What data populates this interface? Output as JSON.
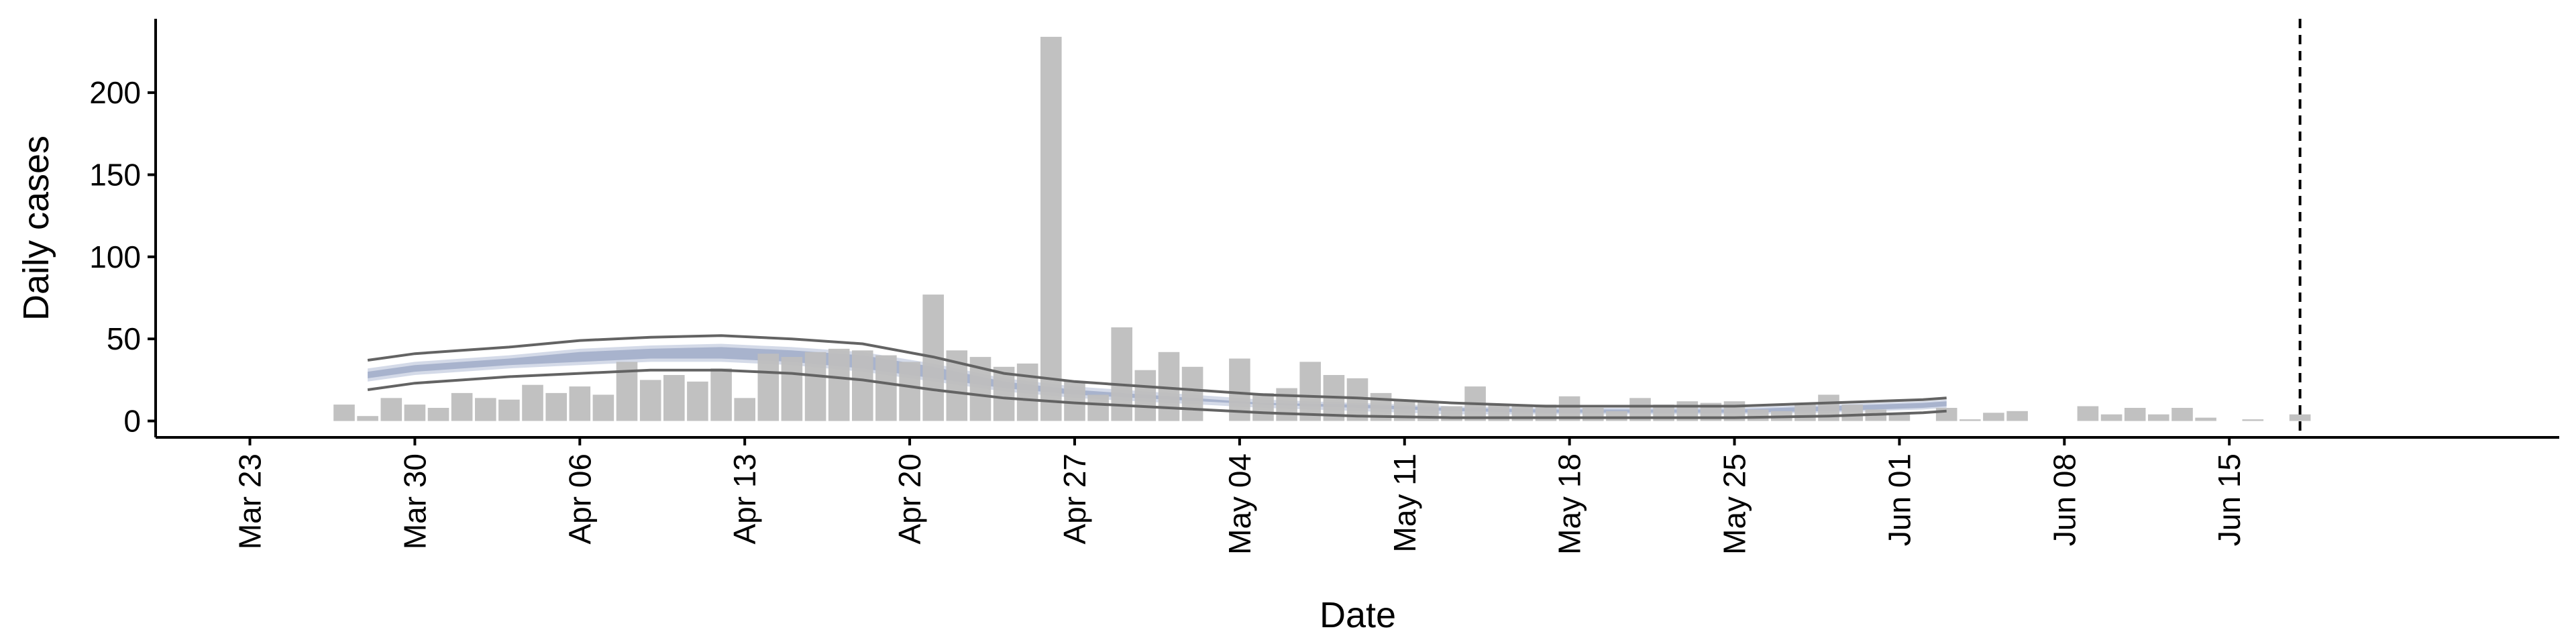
{
  "chart_data": {
    "type": "bar",
    "title": "",
    "xlabel": "Date",
    "ylabel": "Daily cases",
    "x_start": "2020-03-23",
    "x_range": [
      "2020-03-19",
      "2020-06-29"
    ],
    "ylim": [
      -10,
      245
    ],
    "yticks": [
      0,
      50,
      100,
      150,
      200
    ],
    "xticks": [
      {
        "date": "2020-03-23",
        "label": "Mar 23"
      },
      {
        "date": "2020-03-30",
        "label": "Mar 30"
      },
      {
        "date": "2020-04-06",
        "label": "Apr 06"
      },
      {
        "date": "2020-04-13",
        "label": "Apr 13"
      },
      {
        "date": "2020-04-20",
        "label": "Apr 20"
      },
      {
        "date": "2020-04-27",
        "label": "Apr 27"
      },
      {
        "date": "2020-05-04",
        "label": "May 04"
      },
      {
        "date": "2020-05-11",
        "label": "May 11"
      },
      {
        "date": "2020-05-18",
        "label": "May 18"
      },
      {
        "date": "2020-05-25",
        "label": "May 25"
      },
      {
        "date": "2020-06-01",
        "label": "Jun 01"
      },
      {
        "date": "2020-06-08",
        "label": "Jun 08"
      },
      {
        "date": "2020-06-15",
        "label": "Jun 15"
      }
    ],
    "bars": {
      "dates": [
        "2020-03-27",
        "2020-03-28",
        "2020-03-29",
        "2020-03-30",
        "2020-03-31",
        "2020-04-01",
        "2020-04-02",
        "2020-04-03",
        "2020-04-04",
        "2020-04-05",
        "2020-04-06",
        "2020-04-07",
        "2020-04-08",
        "2020-04-09",
        "2020-04-10",
        "2020-04-11",
        "2020-04-12",
        "2020-04-13",
        "2020-04-14",
        "2020-04-15",
        "2020-04-16",
        "2020-04-17",
        "2020-04-18",
        "2020-04-19",
        "2020-04-20",
        "2020-04-21",
        "2020-04-22",
        "2020-04-23",
        "2020-04-24",
        "2020-04-25",
        "2020-04-26",
        "2020-04-27",
        "2020-04-28",
        "2020-04-29",
        "2020-04-30",
        "2020-05-01",
        "2020-05-02",
        "2020-05-03",
        "2020-05-04",
        "2020-05-05",
        "2020-05-06",
        "2020-05-07",
        "2020-05-08",
        "2020-05-09",
        "2020-05-10",
        "2020-05-11",
        "2020-05-12",
        "2020-05-13",
        "2020-05-14",
        "2020-05-15",
        "2020-05-16",
        "2020-05-17",
        "2020-05-18",
        "2020-05-19",
        "2020-05-20",
        "2020-05-21",
        "2020-05-22",
        "2020-05-23",
        "2020-05-24",
        "2020-05-25",
        "2020-05-26",
        "2020-05-27",
        "2020-05-28",
        "2020-05-29",
        "2020-05-30",
        "2020-05-31",
        "2020-06-01",
        "2020-06-02",
        "2020-06-03",
        "2020-06-04",
        "2020-06-05",
        "2020-06-06",
        "2020-06-07",
        "2020-06-08",
        "2020-06-09",
        "2020-06-10",
        "2020-06-11",
        "2020-06-12",
        "2020-06-13",
        "2020-06-14",
        "2020-06-15",
        "2020-06-16",
        "2020-06-17",
        "2020-06-18"
      ],
      "values": [
        10,
        3,
        14,
        10,
        8,
        17,
        14,
        13,
        22,
        17,
        21,
        16,
        36,
        25,
        28,
        24,
        32,
        14,
        41,
        39,
        42,
        44,
        43,
        40,
        36,
        77,
        43,
        39,
        33,
        35,
        234,
        24,
        16,
        57,
        31,
        42,
        33,
        0,
        38,
        17,
        20,
        36,
        28,
        26,
        17,
        13,
        12,
        9,
        21,
        10,
        9,
        10,
        15,
        8,
        6,
        14,
        10,
        12,
        11,
        12,
        7,
        6,
        10,
        16,
        10,
        7,
        5,
        0,
        8,
        1,
        5,
        6,
        0,
        0,
        9,
        4,
        8,
        4,
        8,
        2,
        0,
        1,
        0,
        4
      ],
      "color": "#bebebe"
    },
    "model_lines": {
      "dates": [
        "2020-03-28",
        "2020-03-30",
        "2020-04-01",
        "2020-04-03",
        "2020-04-06",
        "2020-04-09",
        "2020-04-12",
        "2020-04-15",
        "2020-04-18",
        "2020-04-21",
        "2020-04-24",
        "2020-04-27",
        "2020-05-01",
        "2020-05-05",
        "2020-05-09",
        "2020-05-13",
        "2020-05-17",
        "2020-05-21",
        "2020-05-25",
        "2020-05-29",
        "2020-06-02",
        "2020-06-03"
      ],
      "upper": [
        37,
        41,
        43,
        45,
        49,
        51,
        52,
        50,
        47,
        39,
        29,
        24,
        20,
        16,
        14,
        11,
        9,
        9,
        9,
        11,
        13,
        14
      ],
      "lower": [
        19,
        23,
        25,
        27,
        29,
        31,
        31,
        29,
        25,
        19,
        14,
        11,
        8,
        5,
        3,
        2,
        2,
        2,
        2,
        3,
        5,
        6
      ],
      "band_outer_upper": [
        32,
        36,
        38,
        40,
        44,
        46,
        47,
        45,
        42,
        35,
        26,
        21,
        17,
        13,
        11,
        9,
        8,
        8,
        8,
        10,
        12,
        13
      ],
      "band_outer_lower": [
        24,
        28,
        30,
        32,
        34,
        36,
        36,
        34,
        30,
        24,
        18,
        14,
        11,
        8,
        6,
        4,
        4,
        4,
        4,
        5,
        7,
        8
      ],
      "band_inner_upper": [
        30,
        34,
        36,
        38,
        42,
        44,
        45,
        43,
        40,
        33,
        24,
        19,
        15,
        11,
        10,
        8,
        7,
        7,
        7,
        9,
        11,
        12
      ],
      "band_inner_lower": [
        26,
        30,
        32,
        34,
        36,
        38,
        38,
        36,
        32,
        26,
        20,
        16,
        13,
        10,
        8,
        6,
        5,
        5,
        5,
        6,
        8,
        9
      ],
      "line_color": "#636363",
      "band_outer_color": "#c6cde0",
      "band_inner_color": "#9aa6c4"
    },
    "vline": {
      "date": "2020-06-18",
      "style": "dashed",
      "color": "#000000"
    },
    "grid": false,
    "legend": "none"
  }
}
